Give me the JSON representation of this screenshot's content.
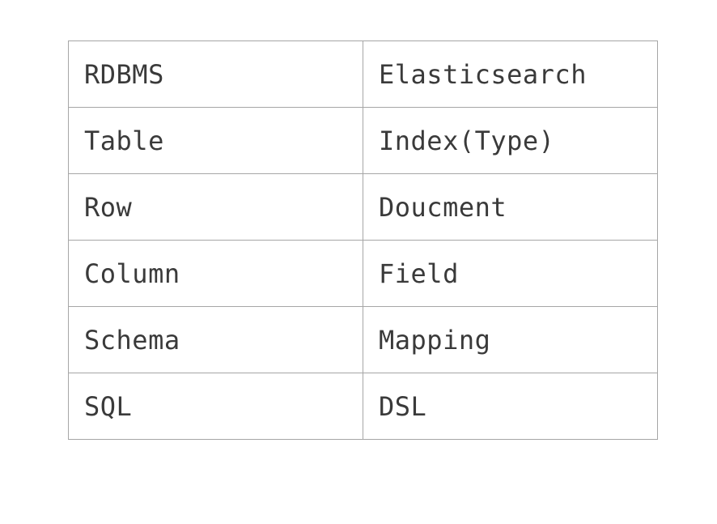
{
  "table": {
    "rows": [
      [
        "RDBMS",
        "Elasticsearch"
      ],
      [
        "Table",
        "Index(Type)"
      ],
      [
        "Row",
        "Doucment"
      ],
      [
        "Column",
        "Field"
      ],
      [
        "Schema",
        "Mapping"
      ],
      [
        "SQL",
        "DSL"
      ]
    ]
  }
}
